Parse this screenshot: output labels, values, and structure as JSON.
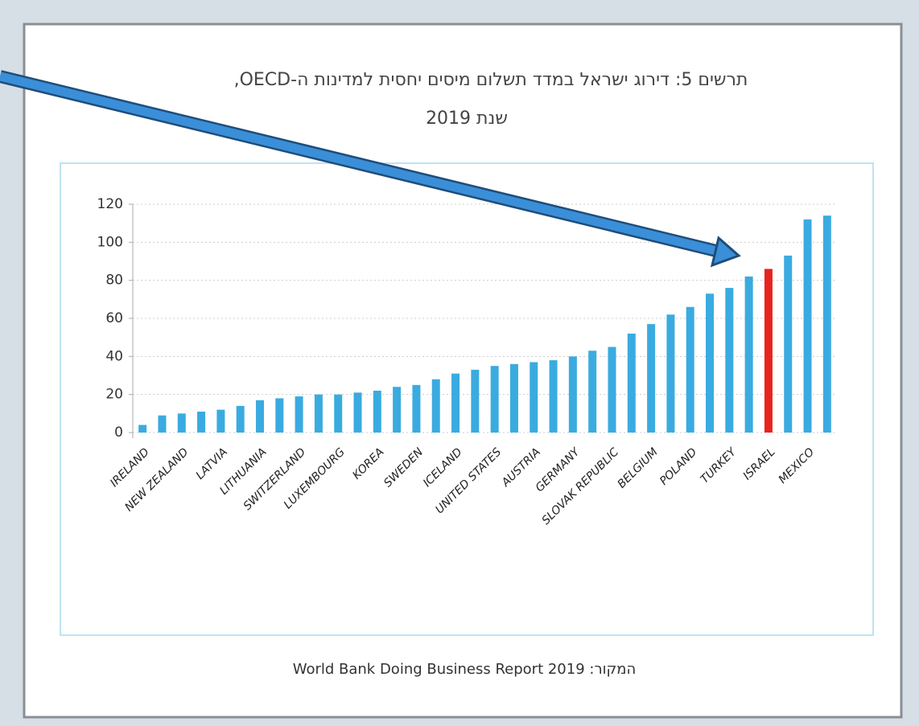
{
  "chart_data": {
    "type": "bar",
    "title": "תרשים 5: דירוג ישראל במדד תשלום מיסים יחסית למדינות ה-OECD,",
    "subtitle": "שנת 2019",
    "source": "המקור: World Bank Doing Business Report 2019",
    "categories": [
      "IRELAND",
      null,
      "NEW ZEALAND",
      null,
      "LATVIA",
      null,
      "LITHUANIA",
      null,
      "SWITZERLAND",
      null,
      "LUXEMBOURG",
      null,
      "KOREA",
      null,
      "SWEDEN",
      null,
      "ICELAND",
      null,
      "UNITED STATES",
      null,
      "AUSTRIA",
      null,
      "GERMANY",
      null,
      "SLOVAK REPUBLIC",
      null,
      "BELGIUM",
      null,
      "POLAND",
      null,
      "TURKEY",
      null,
      "ISRAEL",
      null,
      "MEXICO",
      null
    ],
    "values": [
      4,
      9,
      10,
      11,
      12,
      14,
      17,
      18,
      19,
      20,
      20,
      21,
      22,
      24,
      25,
      28,
      31,
      33,
      35,
      36,
      37,
      38,
      40,
      43,
      45,
      52,
      57,
      62,
      66,
      73,
      76,
      82,
      86,
      93,
      112,
      114
    ],
    "colors": [
      "#3aabe0",
      "#3aabe0",
      "#3aabe0",
      "#3aabe0",
      "#3aabe0",
      "#3aabe0",
      "#3aabe0",
      "#3aabe0",
      "#3aabe0",
      "#3aabe0",
      "#3aabe0",
      "#3aabe0",
      "#3aabe0",
      "#3aabe0",
      "#3aabe0",
      "#3aabe0",
      "#3aabe0",
      "#3aabe0",
      "#3aabe0",
      "#3aabe0",
      "#3aabe0",
      "#3aabe0",
      "#3aabe0",
      "#3aabe0",
      "#3aabe0",
      "#3aabe0",
      "#3aabe0",
      "#3aabe0",
      "#3aabe0",
      "#3aabe0",
      "#3aabe0",
      "#3aabe0",
      "#e8231f",
      "#3aabe0",
      "#3aabe0",
      "#3aabe0"
    ],
    "ylim": [
      0,
      120
    ],
    "yticks": [
      0,
      20,
      40,
      60,
      80,
      100,
      120
    ],
    "grid": true
  }
}
